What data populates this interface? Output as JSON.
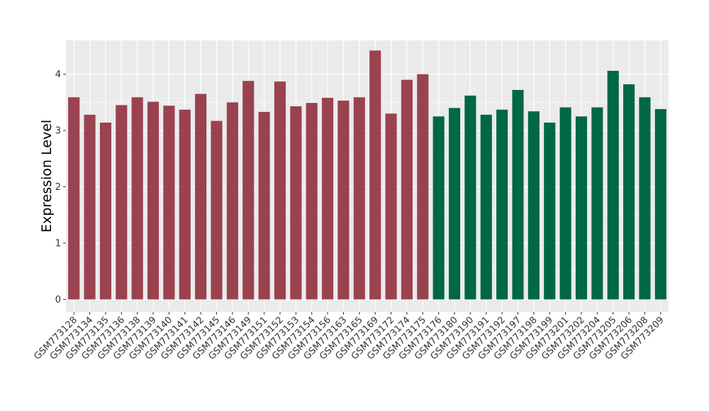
{
  "chart_data": {
    "type": "bar",
    "ylabel": "Expression Level",
    "xlabel": "",
    "ylim": [
      -0.22,
      4.6
    ],
    "yticks": [
      0,
      1,
      2,
      3,
      4
    ],
    "grid": true,
    "background": "#EBEBEB",
    "gridline_color": "#FFFFFF",
    "colors": {
      "group_1": "#9A4250",
      "group_2": "#006747"
    },
    "categories": [
      "GSM773128",
      "GSM773134",
      "GSM773135",
      "GSM773136",
      "GSM773138",
      "GSM773139",
      "GSM773140",
      "GSM773141",
      "GSM773142",
      "GSM773145",
      "GSM773146",
      "GSM773149",
      "GSM773151",
      "GSM773152",
      "GSM773153",
      "GSM773154",
      "GSM773156",
      "GSM773163",
      "GSM773165",
      "GSM773169",
      "GSM773172",
      "GSM773174",
      "GSM773175",
      "GSM773176",
      "GSM773180",
      "GSM773190",
      "GSM773191",
      "GSM773192",
      "GSM773197",
      "GSM773198",
      "GSM773199",
      "GSM773201",
      "GSM773202",
      "GSM773204",
      "GSM773205",
      "GSM773206",
      "GSM773208",
      "GSM773209"
    ],
    "values": [
      3.59,
      3.28,
      3.14,
      3.45,
      3.59,
      3.51,
      3.44,
      3.37,
      3.65,
      3.17,
      3.5,
      3.88,
      3.33,
      3.87,
      3.43,
      3.49,
      3.58,
      3.53,
      3.59,
      4.42,
      3.3,
      3.9,
      4.0,
      3.25,
      3.4,
      3.62,
      3.28,
      3.37,
      3.72,
      3.34,
      3.14,
      3.41,
      3.25,
      3.41,
      4.06,
      3.82,
      3.59,
      3.38
    ],
    "group": [
      "group_1",
      "group_1",
      "group_1",
      "group_1",
      "group_1",
      "group_1",
      "group_1",
      "group_1",
      "group_1",
      "group_1",
      "group_1",
      "group_1",
      "group_1",
      "group_1",
      "group_1",
      "group_1",
      "group_1",
      "group_1",
      "group_1",
      "group_1",
      "group_1",
      "group_1",
      "group_1",
      "group_2",
      "group_2",
      "group_2",
      "group_2",
      "group_2",
      "group_2",
      "group_2",
      "group_2",
      "group_2",
      "group_2",
      "group_2",
      "group_2",
      "group_2",
      "group_2",
      "group_2"
    ]
  }
}
